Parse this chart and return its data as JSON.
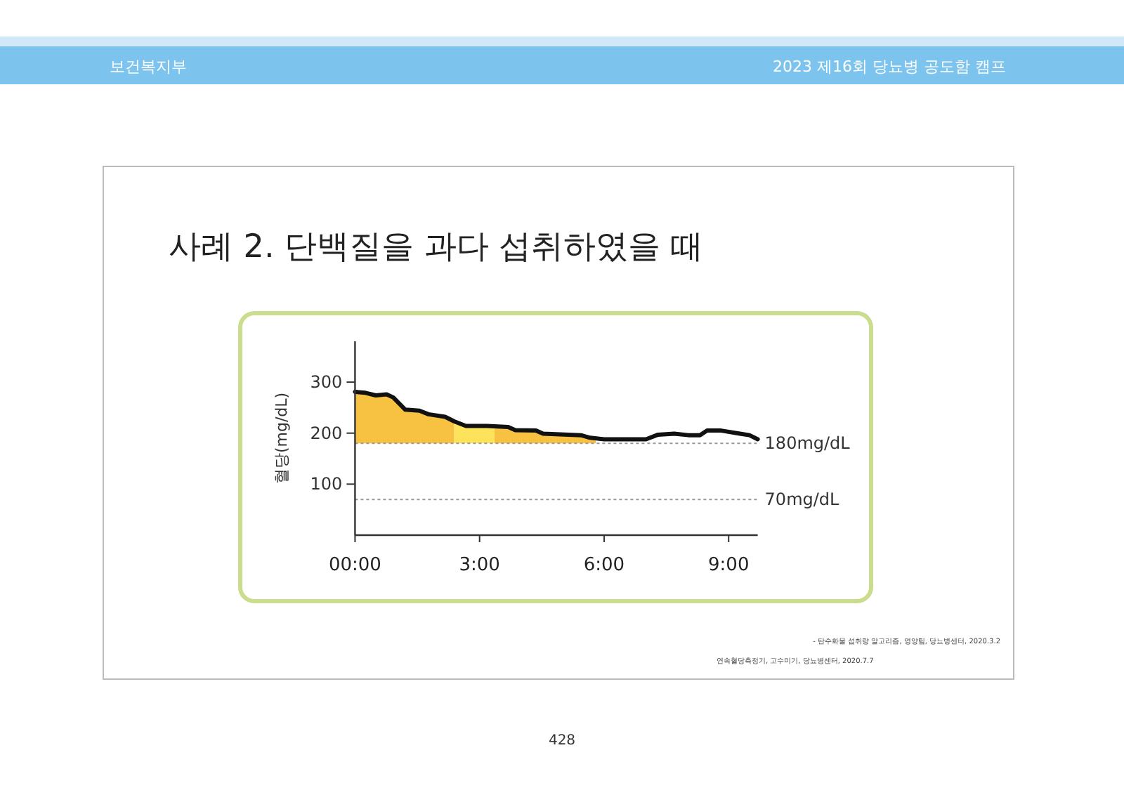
{
  "chart_data": {
    "type": "line",
    "title": "사례 2. 단백질을 과다 섭취하였을 때",
    "ylabel": "혈당(mg/dL)",
    "annotations": [
      "보건복지부",
      "2023 제16회 당뇨병 공도함 캠프",
      "428",
      "- 탄수화물 섭취량 알고리즘, 영양팀, 당뇨병센터, 2020.3.2",
      "연속혈당측정기, 고수미기, 당뇨병센터, 2020.7.7"
    ],
    "xlim": [
      0,
      9.7
    ],
    "ylim": [
      0,
      380
    ],
    "xticks": [
      {
        "value": 0,
        "label": "00:00"
      },
      {
        "value": 3,
        "label": "3:00"
      },
      {
        "value": 6,
        "label": "6:00"
      },
      {
        "value": 9,
        "label": "9:00"
      }
    ],
    "yticks": [
      100,
      200,
      300
    ],
    "ref_lines": [
      {
        "axis": "y",
        "value": 180,
        "label": "180mg/dL",
        "color": "#999999",
        "line_style": "dotted"
      },
      {
        "axis": "y",
        "value": 70,
        "label": "70mg/dL",
        "color": "#999999",
        "line_style": "dotted"
      }
    ],
    "series": [
      {
        "type": "area",
        "color": "#f7c142",
        "x": [
          0,
          0.25,
          0.5,
          0.76,
          0.92,
          1.21,
          1.55,
          1.77,
          2.17,
          2.39
        ],
        "values": [
          281,
          279,
          274,
          276,
          270,
          246,
          244,
          237,
          232,
          223
        ]
      },
      {
        "type": "area",
        "color": "#fde35c",
        "x": [
          2.39,
          2.67,
          3.18,
          3.36
        ],
        "values": [
          223,
          214,
          214,
          214
        ]
      },
      {
        "type": "area",
        "color": "#f7c142",
        "x": [
          3.36,
          3.69,
          3.86,
          4.36,
          4.53,
          5.44,
          5.66,
          5.8
        ],
        "values": [
          214,
          212,
          206,
          205,
          199,
          196,
          191,
          189
        ]
      },
      {
        "type": "line",
        "color": "#111111",
        "x": [
          0,
          0.25,
          0.5,
          0.76,
          0.92,
          1.21,
          1.55,
          1.77,
          2.17,
          2.39,
          2.67,
          3.18,
          3.69,
          3.86,
          4.36,
          4.53,
          5.44,
          5.66,
          6.0,
          7.01,
          7.3,
          7.69,
          8.03,
          8.31,
          8.48,
          8.82,
          9.27,
          9.5,
          9.7
        ],
        "values": [
          281,
          279,
          274,
          276,
          270,
          246,
          244,
          237,
          232,
          223,
          214,
          214,
          212,
          206,
          205,
          199,
          196,
          191,
          188,
          188,
          197,
          199,
          196,
          196,
          205,
          205,
          199,
          196,
          188
        ]
      }
    ]
  }
}
